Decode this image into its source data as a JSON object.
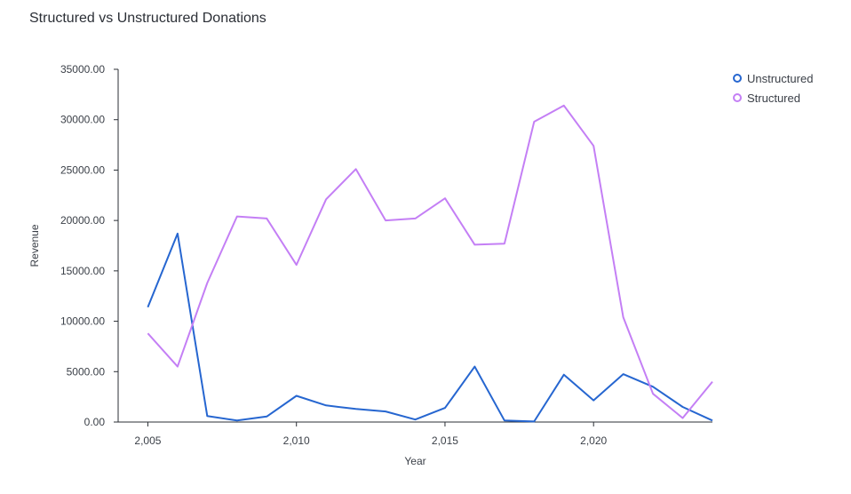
{
  "title": "Structured vs Unstructured Donations",
  "colors": {
    "unstructured": "#2666d0",
    "structured": "#c47ff5",
    "axis": "#2b2f36",
    "text": "#3a3f47"
  },
  "chart_data": {
    "type": "line",
    "title": "Structured vs Unstructured Donations",
    "xlabel": "Year",
    "ylabel": "Revenue",
    "x": [
      2005,
      2006,
      2007,
      2008,
      2009,
      2010,
      2011,
      2012,
      2013,
      2014,
      2015,
      2016,
      2017,
      2018,
      2019,
      2020,
      2021,
      2022,
      2023,
      2024
    ],
    "xlim": [
      2004,
      2024
    ],
    "ylim": [
      0,
      35000
    ],
    "xticks": [
      2005,
      2010,
      2015,
      2020
    ],
    "xtick_labels": [
      "2,005",
      "2,010",
      "2,015",
      "2,020"
    ],
    "yticks": [
      0,
      5000,
      10000,
      15000,
      20000,
      25000,
      30000,
      35000
    ],
    "ytick_labels": [
      "0.00",
      "5000.00",
      "10000.00",
      "15000.00",
      "20000.00",
      "25000.00",
      "30000.00",
      "35000.00"
    ],
    "legend_position": "top-right",
    "grid": false,
    "series": [
      {
        "name": "Unstructured",
        "color": "#2666d0",
        "values": [
          11400,
          18700,
          600,
          150,
          550,
          2600,
          1650,
          1300,
          1050,
          250,
          1400,
          5500,
          150,
          50,
          4700,
          2150,
          4750,
          3500,
          1500,
          150
        ]
      },
      {
        "name": "Structured",
        "color": "#c47ff5",
        "values": [
          8800,
          5500,
          13800,
          20400,
          20200,
          15600,
          22100,
          25100,
          20000,
          20200,
          22200,
          17600,
          17700,
          29800,
          31400,
          27400,
          10400,
          2800,
          400,
          4000
        ]
      }
    ]
  }
}
